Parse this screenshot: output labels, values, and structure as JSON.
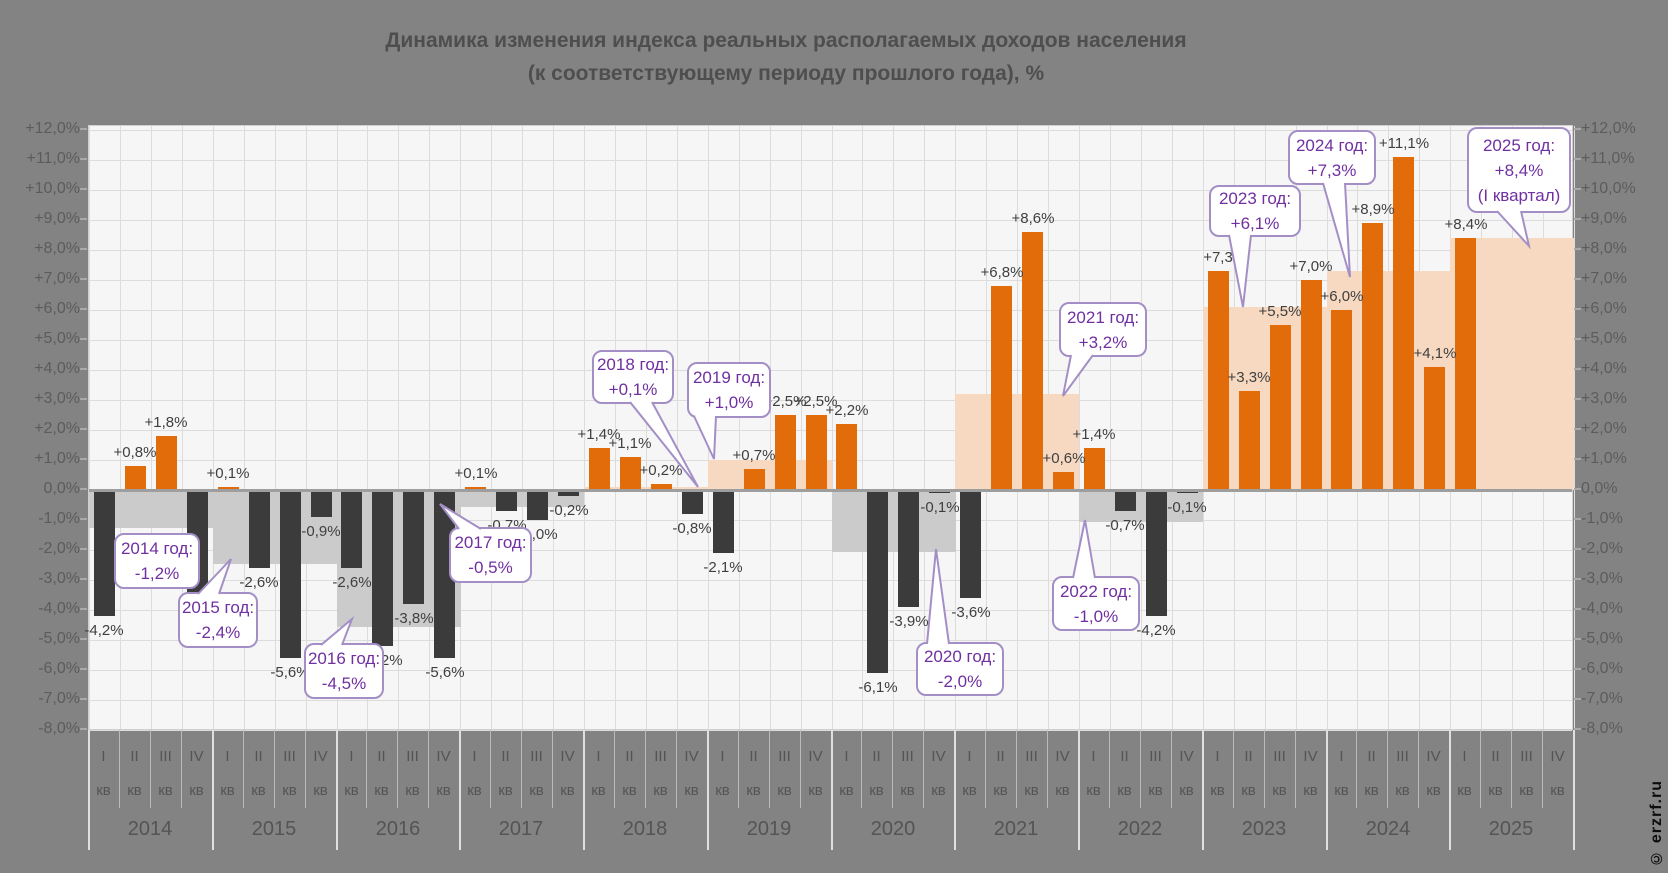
{
  "title": {
    "line1": "Динамика изменения индекса реальных располагаемых доходов населения",
    "line2": "(к соответствующему периоду прошлого года), %"
  },
  "watermark": "© erzrf.ru",
  "colors": {
    "background": "#838383",
    "plot_background": "#f6f6f6",
    "gridline": "#dcdcdc",
    "positive_bar": "#e26b0a",
    "negative_bar": "#3b3b3b",
    "positive_year_shading": "#f6d9c0",
    "negative_year_shading": "#cbcbcb",
    "callout_border": "#a38fc6",
    "callout_text": "#7030a0",
    "axis_text": "#5c5c5c"
  },
  "y_axis": {
    "ticks": [
      "+12,0%",
      "+11,0%",
      "+10,0%",
      "+9,0%",
      "+8,0%",
      "+7,0%",
      "+6,0%",
      "+5,0%",
      "+4,0%",
      "+3,0%",
      "+2,0%",
      "+1,0%",
      "0,0%",
      "-1,0%",
      "-2,0%",
      "-3,0%",
      "-4,0%",
      "-5,0%",
      "-6,0%",
      "-7,0%",
      "-8,0%"
    ],
    "max": 12,
    "min": -8,
    "step": 1
  },
  "x_axis": {
    "quarter_numerals": [
      "I",
      "II",
      "III",
      "IV"
    ],
    "quarter_suffix": "кв"
  },
  "chart_data": {
    "type": "bar",
    "title": "Динамика изменения индекса реальных располагаемых доходов населения (к соответствующему периоду прошлого года), %",
    "xlabel": "",
    "ylabel": "%",
    "ylim": [
      -8,
      12
    ],
    "grid": true,
    "years": [
      {
        "year": "2014",
        "annual_avg": -1.2,
        "callout": [
          "2014 год:",
          "-1,2%"
        ],
        "quarters": [
          {
            "q": "I кв",
            "value": -4.2,
            "text": "-4,2%"
          },
          {
            "q": "II кв",
            "value": 0.8,
            "text": "+0,8%"
          },
          {
            "q": "III кв",
            "value": 1.8,
            "text": "+1,8%"
          },
          {
            "q": "IV кв",
            "value": -3.5,
            "text": "-3,5%"
          }
        ]
      },
      {
        "year": "2015",
        "annual_avg": -2.4,
        "callout": [
          "2015 год:",
          "-2,4%"
        ],
        "quarters": [
          {
            "q": "I кв",
            "value": 0.1,
            "text": "+0,1%"
          },
          {
            "q": "II кв",
            "value": -2.6,
            "text": "-2,6%"
          },
          {
            "q": "III кв",
            "value": -5.6,
            "text": "-5,6%"
          },
          {
            "q": "IV кв",
            "value": -0.9,
            "text": "-0,9%"
          }
        ]
      },
      {
        "year": "2016",
        "annual_avg": -4.5,
        "callout": [
          "2016 год:",
          "-4,5%"
        ],
        "quarters": [
          {
            "q": "I кв",
            "value": -2.6,
            "text": "-2,6%"
          },
          {
            "q": "II кв",
            "value": -5.2,
            "text": "-5,2%"
          },
          {
            "q": "III кв",
            "value": -3.8,
            "text": "-3,8%"
          },
          {
            "q": "IV кв",
            "value": -5.6,
            "text": "-5,6%"
          }
        ]
      },
      {
        "year": "2017",
        "annual_avg": -0.5,
        "callout": [
          "2017 год:",
          "-0,5%"
        ],
        "quarters": [
          {
            "q": "I кв",
            "value": 0.1,
            "text": "+0,1%"
          },
          {
            "q": "II кв",
            "value": -0.7,
            "text": "-0,7%"
          },
          {
            "q": "III кв",
            "value": -1.0,
            "text": "-1,0%"
          },
          {
            "q": "IV кв",
            "value": -0.2,
            "text": "-0,2%"
          }
        ]
      },
      {
        "year": "2018",
        "annual_avg": 0.1,
        "callout": [
          "2018 год:",
          "+0,1%"
        ],
        "quarters": [
          {
            "q": "I кв",
            "value": 1.4,
            "text": "+1,4%"
          },
          {
            "q": "II кв",
            "value": 1.1,
            "text": "+1,1%"
          },
          {
            "q": "III кв",
            "value": 0.2,
            "text": "+0,2%"
          },
          {
            "q": "IV кв",
            "value": -0.8,
            "text": "-0,8%"
          }
        ]
      },
      {
        "year": "2019",
        "annual_avg": 1.0,
        "callout": [
          "2019 год:",
          "+1,0%"
        ],
        "quarters": [
          {
            "q": "I кв",
            "value": -2.1,
            "text": "-2,1%"
          },
          {
            "q": "II кв",
            "value": 0.7,
            "text": "+0,7%"
          },
          {
            "q": "III кв",
            "value": 2.5,
            "text": "+2,5%"
          },
          {
            "q": "IV кв",
            "value": 2.5,
            "text": "+2,5%"
          }
        ]
      },
      {
        "year": "2020",
        "annual_avg": -2.0,
        "callout": [
          "2020 год:",
          "-2,0%"
        ],
        "quarters": [
          {
            "q": "I кв",
            "value": 2.2,
            "text": "+2,2%"
          },
          {
            "q": "II кв",
            "value": -6.1,
            "text": "-6,1%"
          },
          {
            "q": "III кв",
            "value": -3.9,
            "text": "-3,9%"
          },
          {
            "q": "IV кв",
            "value": -0.1,
            "text": "-0,1%"
          }
        ]
      },
      {
        "year": "2021",
        "annual_avg": 3.2,
        "callout": [
          "2021 год:",
          "+3,2%"
        ],
        "quarters": [
          {
            "q": "I кв",
            "value": -3.6,
            "text": "-3,6%"
          },
          {
            "q": "II кв",
            "value": 6.8,
            "text": "+6,8%"
          },
          {
            "q": "III кв",
            "value": 8.6,
            "text": "+8,6%"
          },
          {
            "q": "IV кв",
            "value": 0.6,
            "text": "+0,6%"
          }
        ]
      },
      {
        "year": "2022",
        "annual_avg": -1.0,
        "callout": [
          "2022 год:",
          "-1,0%"
        ],
        "quarters": [
          {
            "q": "I кв",
            "value": 1.4,
            "text": "+1,4%"
          },
          {
            "q": "II кв",
            "value": -0.7,
            "text": "-0,7%"
          },
          {
            "q": "III кв",
            "value": -4.2,
            "text": "-4,2%"
          },
          {
            "q": "IV кв",
            "value": -0.1,
            "text": "-0,1%"
          }
        ]
      },
      {
        "year": "2023",
        "annual_avg": 6.1,
        "callout": [
          "2023 год:",
          "+6,1%"
        ],
        "quarters": [
          {
            "q": "I кв",
            "value": 7.3,
            "text": "+7,3"
          },
          {
            "q": "II кв",
            "value": 3.3,
            "text": "+3,3%"
          },
          {
            "q": "III кв",
            "value": 5.5,
            "text": "+5,5%"
          },
          {
            "q": "IV кв",
            "value": 7.0,
            "text": "+7,0%"
          }
        ]
      },
      {
        "year": "2024",
        "annual_avg": 7.3,
        "callout": [
          "2024 год:",
          "+7,3%"
        ],
        "quarters": [
          {
            "q": "I кв",
            "value": 6.0,
            "text": "+6,0%"
          },
          {
            "q": "II кв",
            "value": 8.9,
            "text": "+8,9%"
          },
          {
            "q": "III кв",
            "value": 11.1,
            "text": "+11,1%"
          },
          {
            "q": "IV кв",
            "value": 4.1,
            "text": "+4,1%"
          }
        ]
      },
      {
        "year": "2025",
        "annual_avg": 8.4,
        "callout": [
          "2025 год:",
          "+8,4%",
          "(I квартал)"
        ],
        "quarters": [
          {
            "q": "I кв",
            "value": 8.4,
            "text": "+8,4%"
          }
        ]
      }
    ]
  }
}
